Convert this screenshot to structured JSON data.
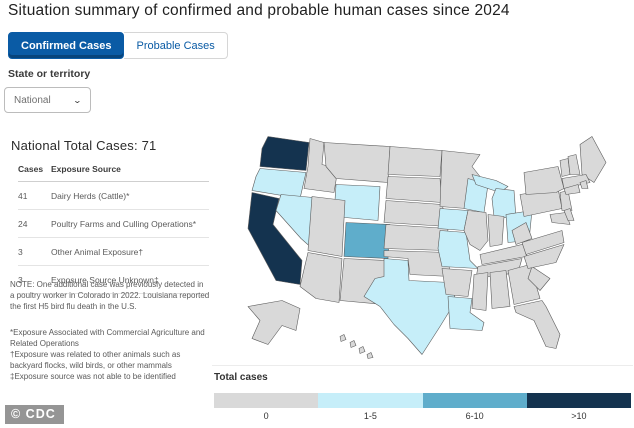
{
  "title": "Situation summary of confirmed and probable human cases since 2024",
  "tabs": [
    {
      "label": "Confirmed Cases",
      "active": true
    },
    {
      "label": "Probable Cases",
      "active": false
    }
  ],
  "filter": {
    "label": "State or territory",
    "value": "National"
  },
  "summary": {
    "title": "National Total Cases: 71",
    "table": {
      "headers": [
        "Cases",
        "Exposure Source"
      ],
      "rows": [
        {
          "cases": "41",
          "source": "Dairy Herds (Cattle)*"
        },
        {
          "cases": "24",
          "source": "Poultry Farms and Culling Operations*"
        },
        {
          "cases": "3",
          "source": "Other Animal Exposure†"
        },
        {
          "cases": "3",
          "source": "Exposure Source Unknown‡"
        }
      ]
    },
    "note": "NOTE: One additional case was previously detected in a poultry worker in Colorado in 2022. Louisiana reported the first H5 bird flu death in the U.S.",
    "footnotes": [
      "*Exposure Associated with Commercial Agriculture and Related Operations",
      "†Exposure was related to other animals such as backyard flocks, wild birds, or other mammals",
      "‡Exposure source was not able to be identified"
    ]
  },
  "map": {
    "legend_title": "Total cases",
    "legend": [
      {
        "label": "0",
        "color": "#d9d9d9"
      },
      {
        "label": "1-5",
        "color": "#c6eef9"
      },
      {
        "label": "6-10",
        "color": "#5fadcb"
      },
      {
        "label": ">10",
        "color": "#14334f"
      }
    ],
    "state_categories": {
      "WA": ">10",
      "CA": ">10",
      "CO": "6-10",
      "OR": "1-5",
      "NV": "1-5",
      "WY": "1-5",
      "TX": "1-5",
      "IA": "1-5",
      "MO": "1-5",
      "WI": "1-5",
      "MI": "1-5",
      "OH": "1-5",
      "LA": "1-5"
    }
  },
  "colors": {
    "accent_blue": "#0a5ba5",
    "active_tab_bg": "#0a5ba5"
  },
  "watermark": "© CDC"
}
